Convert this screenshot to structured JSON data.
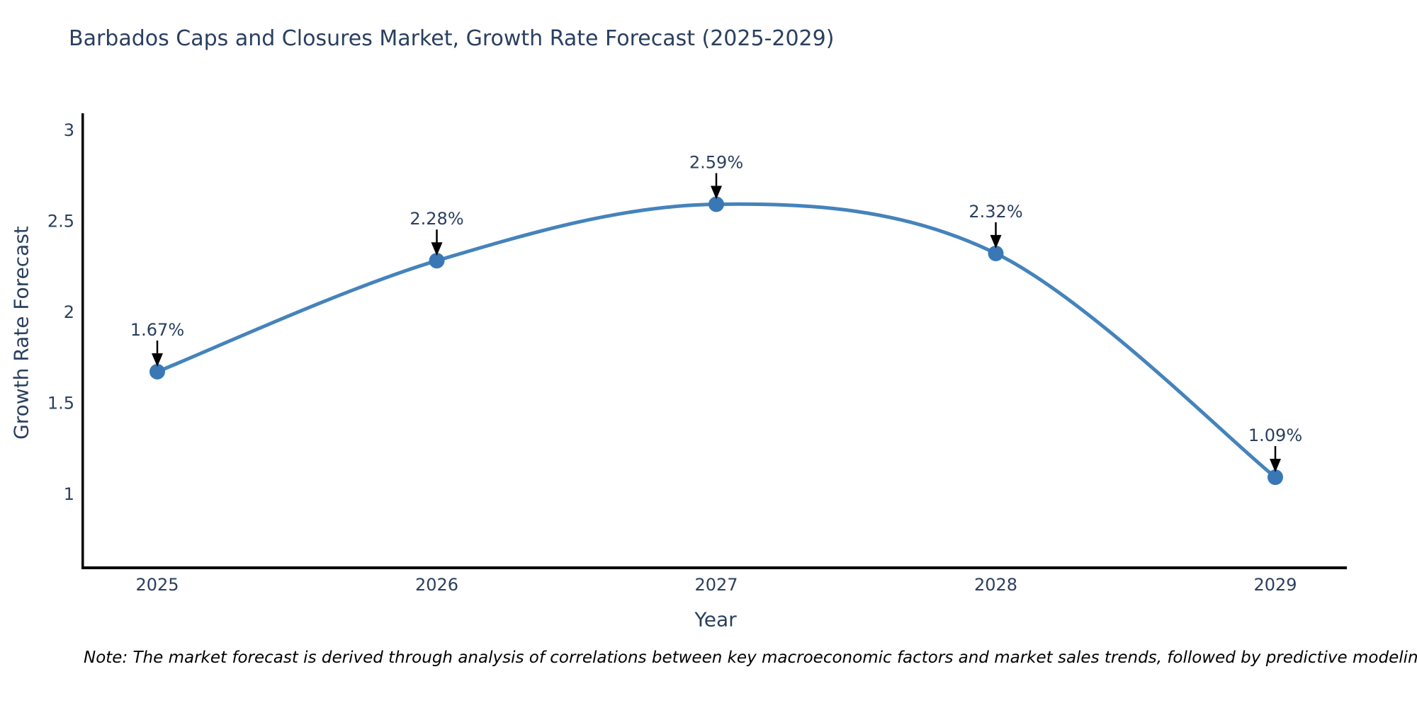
{
  "chart_data": {
    "type": "line",
    "title": "Barbados Caps and Closures Market, Growth Rate Forecast (2025-2029)",
    "x": [
      "2025",
      "2026",
      "2027",
      "2028",
      "2029"
    ],
    "series": [
      {
        "name": "Growth Rate Forecast",
        "values": [
          1.67,
          2.28,
          2.59,
          2.32,
          1.09
        ]
      }
    ],
    "point_labels": [
      "1.67%",
      "2.28%",
      "2.59%",
      "2.32%",
      "1.09%"
    ],
    "xlabel": "Year",
    "ylabel": "Growth Rate Forecast",
    "y_ticks": [
      3,
      2.5,
      2,
      1.5,
      1
    ],
    "ylim": [
      0.6,
      3.09
    ],
    "grid": false,
    "legend": "none",
    "line_shape": "spline",
    "annotation_arrows": true
  },
  "colors": {
    "line": "#4583bb",
    "marker": "#3978b5",
    "title_text": "#2a3f5f",
    "tick_text": "#2a3f5f",
    "annotation_text": "#2a3f5f",
    "axis_line": "#000000",
    "arrow": "#000000",
    "note_text": "#000000",
    "background": "#ffffff"
  },
  "footer": {
    "note": "Note: The market forecast is derived through analysis of correlations between key macroeconomic factors and market sales trends, followed by predictive modeling to project future sales"
  }
}
